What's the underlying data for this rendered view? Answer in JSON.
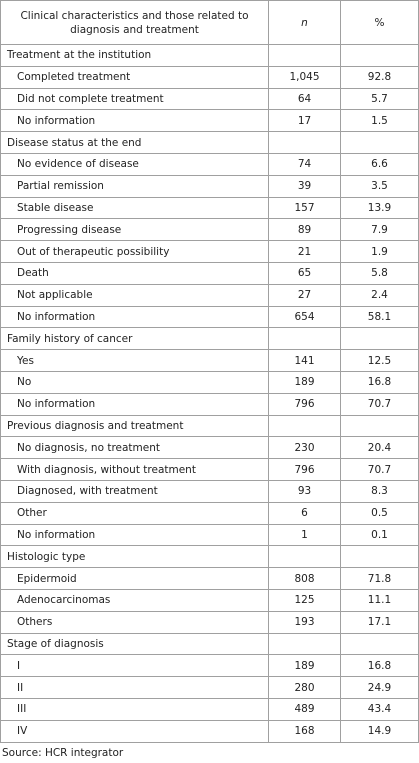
{
  "table": {
    "header": [
      "Clinical characteristics and those related to diagnosis and treatment",
      "n",
      "%"
    ],
    "sections": [
      {
        "title": "Treatment at the institution",
        "rows": [
          [
            "Completed treatment",
            "1,045",
            "92.8"
          ],
          [
            "Did not complete treatment",
            "64",
            "5.7"
          ],
          [
            "No information",
            "17",
            "1.5"
          ]
        ]
      },
      {
        "title": "Disease status at the end",
        "rows": [
          [
            "No evidence of disease",
            "74",
            "6.6"
          ],
          [
            "Partial remission",
            "39",
            "3.5"
          ],
          [
            "Stable disease",
            "157",
            "13.9"
          ],
          [
            "Progressing disease",
            "89",
            "7.9"
          ],
          [
            "Out of therapeutic possibility",
            "21",
            "1.9"
          ],
          [
            "Death",
            "65",
            "5.8"
          ],
          [
            "Not applicable",
            "27",
            "2.4"
          ],
          [
            "No information",
            "654",
            "58.1"
          ]
        ]
      },
      {
        "title": "Family history of cancer",
        "rows": [
          [
            "Yes",
            "141",
            "12.5"
          ],
          [
            "No",
            "189",
            "16.8"
          ],
          [
            "No information",
            "796",
            "70.7"
          ]
        ]
      },
      {
        "title": "Previous diagnosis and treatment",
        "rows": [
          [
            "No diagnosis, no treatment",
            "230",
            "20.4"
          ],
          [
            "With diagnosis, without treatment",
            "796",
            "70.7"
          ],
          [
            "Diagnosed, with treatment",
            "93",
            "8.3"
          ],
          [
            "Other",
            "6",
            "0.5"
          ],
          [
            "No information",
            "1",
            "0.1"
          ]
        ]
      },
      {
        "title": "Histologic type",
        "rows": [
          [
            "Epidermoid",
            "808",
            "71.8"
          ],
          [
            "Adenocarcinomas",
            "125",
            "11.1"
          ],
          [
            "Others",
            "193",
            "17.1"
          ]
        ]
      },
      {
        "title": "Stage of diagnosis",
        "rows": [
          [
            "I",
            "189",
            "16.8"
          ],
          [
            "II",
            "280",
            "24.9"
          ],
          [
            "III",
            "489",
            "43.4"
          ],
          [
            "IV",
            "168",
            "14.9"
          ]
        ]
      }
    ]
  },
  "source": "Source: HCR integrator"
}
